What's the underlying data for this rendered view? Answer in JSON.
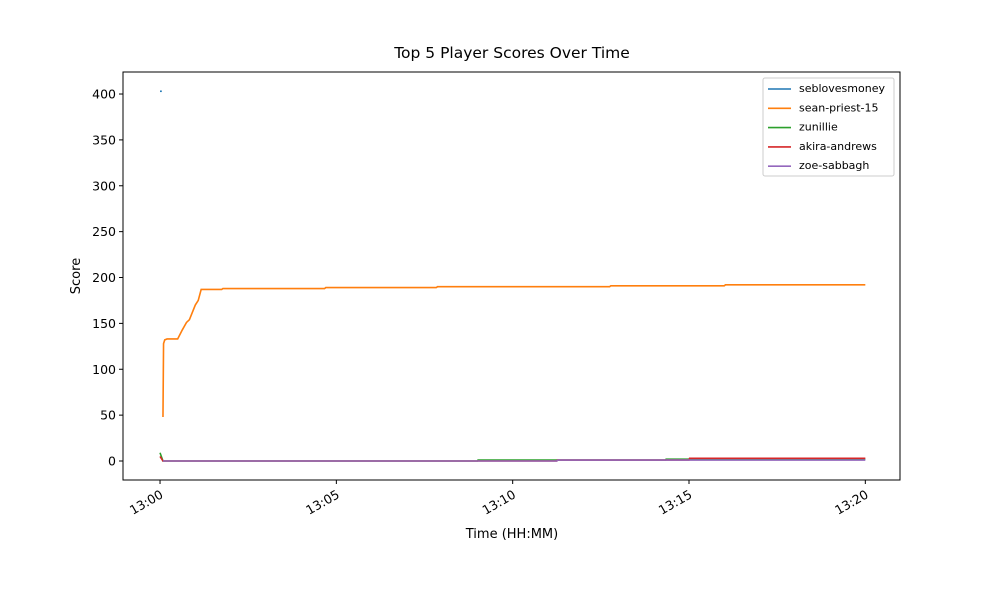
{
  "chart_data": {
    "type": "line",
    "title": "Top 5 Player Scores Over Time",
    "x_label": "Time (HH:MM)",
    "y_label": "Score",
    "xlim": [
      "12:58:57",
      "13:20:59"
    ],
    "xticks": [
      {
        "value": "13:00:00",
        "label": "13:00"
      },
      {
        "value": "13:05:00",
        "label": "13:05"
      },
      {
        "value": "13:10:00",
        "label": "13:10"
      },
      {
        "value": "13:15:00",
        "label": "13:15"
      },
      {
        "value": "13:20:00",
        "label": "13:20"
      }
    ],
    "ylim": [
      -20.7,
      424
    ],
    "yticks": [
      0,
      50,
      100,
      150,
      200,
      250,
      300,
      350,
      400
    ],
    "grid": false,
    "legend": "upper right",
    "series": [
      {
        "name": "seblovesmoney",
        "color": "#1f77b4",
        "x": [
          "13:00:00",
          "13:00:03"
        ],
        "values": [
          403,
          403
        ]
      },
      {
        "name": "sean-priest-15",
        "color": "#ff7f0e",
        "x": [
          "13:00:05",
          "13:00:06",
          "13:00:08",
          "13:00:12",
          "13:00:30",
          "13:00:38",
          "13:00:45",
          "13:00:50",
          "13:01:00",
          "13:01:05",
          "13:01:10",
          "13:01:45",
          "13:01:47",
          "13:04:40",
          "13:04:42",
          "13:07:50",
          "13:07:52",
          "13:12:45",
          "13:12:47",
          "13:16:00",
          "13:16:02",
          "13:20:00"
        ],
        "values": [
          48,
          128,
          132,
          133,
          133,
          143,
          151,
          154,
          170,
          175,
          187,
          187,
          188,
          188,
          189,
          189,
          190,
          190,
          191,
          191,
          192,
          192
        ]
      },
      {
        "name": "zunillie",
        "color": "#2ca02c",
        "x": [
          "13:00:00",
          "13:00:05",
          "13:09:00",
          "13:09:01",
          "13:14:20",
          "13:14:21",
          "13:20:00"
        ],
        "values": [
          9,
          0,
          0,
          1,
          1,
          2,
          2
        ]
      },
      {
        "name": "akira-andrews",
        "color": "#d62728",
        "x": [
          "13:00:00",
          "13:00:05",
          "13:11:15",
          "13:11:16",
          "13:15:00",
          "13:15:01",
          "13:20:00"
        ],
        "values": [
          5,
          0,
          0,
          1,
          1,
          3,
          3
        ]
      },
      {
        "name": "zoe-sabbagh",
        "color": "#9467bd",
        "x": [
          "13:00:05",
          "13:11:15",
          "13:11:17",
          "13:20:00"
        ],
        "values": [
          0,
          0,
          1,
          1
        ]
      }
    ]
  }
}
